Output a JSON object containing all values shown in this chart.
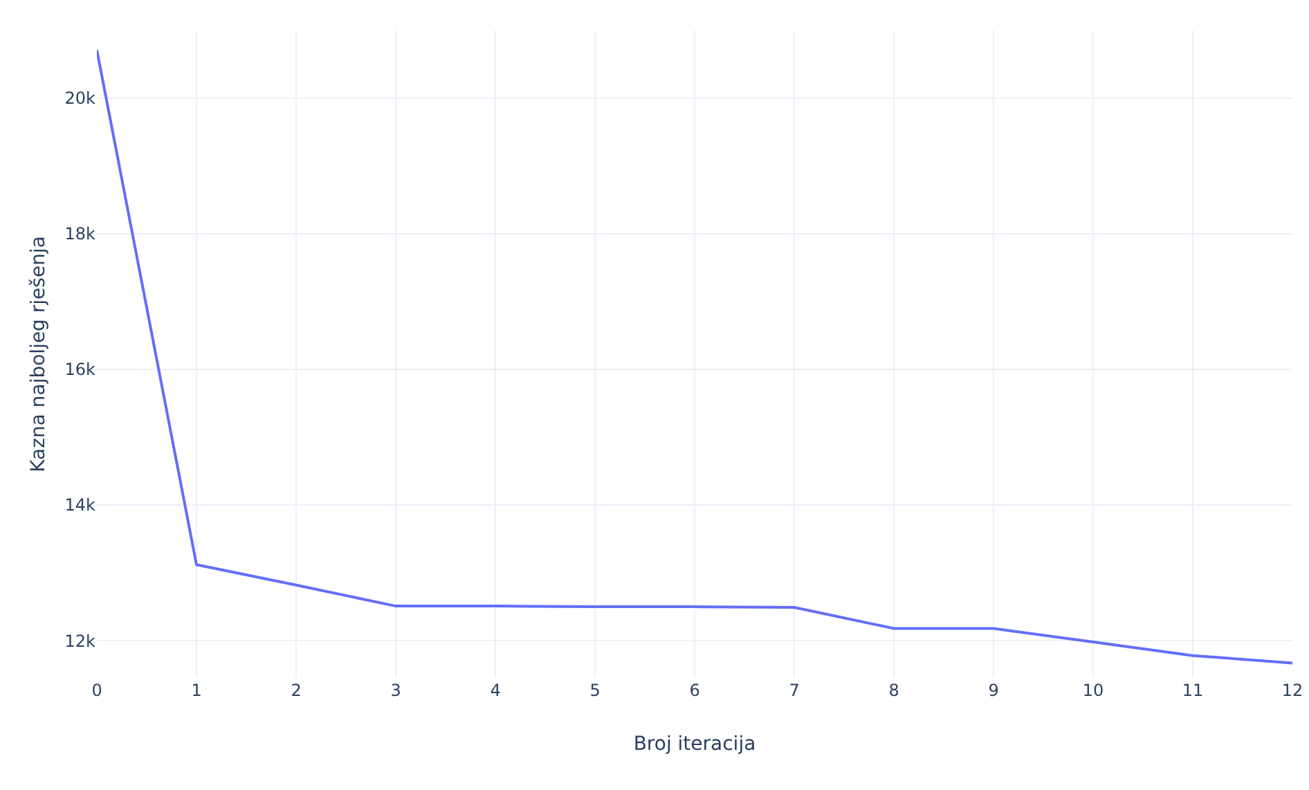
{
  "chart_data": {
    "type": "line",
    "xlabel": "Broj iteracija",
    "ylabel": "Kazna najboljeg rješenja",
    "x": [
      0,
      1,
      2,
      3,
      4,
      5,
      6,
      7,
      8,
      9,
      10,
      11,
      12
    ],
    "series": [
      {
        "color": "#636efa",
        "values": [
          20710,
          13120,
          12820,
          12510,
          12510,
          12500,
          12500,
          12490,
          12180,
          12180,
          11980,
          11780,
          11670
        ]
      }
    ],
    "xlim": [
      0,
      12
    ],
    "xticks": [
      0,
      1,
      2,
      3,
      4,
      5,
      6,
      7,
      8,
      9,
      10,
      11,
      12
    ],
    "ylim": [
      11450,
      21000
    ],
    "yticks": [
      {
        "value": 12000,
        "label": "12k"
      },
      {
        "value": 14000,
        "label": "14k"
      },
      {
        "value": 16000,
        "label": "16k"
      },
      {
        "value": 18000,
        "label": "18k"
      },
      {
        "value": 20000,
        "label": "20k"
      }
    ],
    "grid": true,
    "marker": "none",
    "line_style": "solid"
  }
}
